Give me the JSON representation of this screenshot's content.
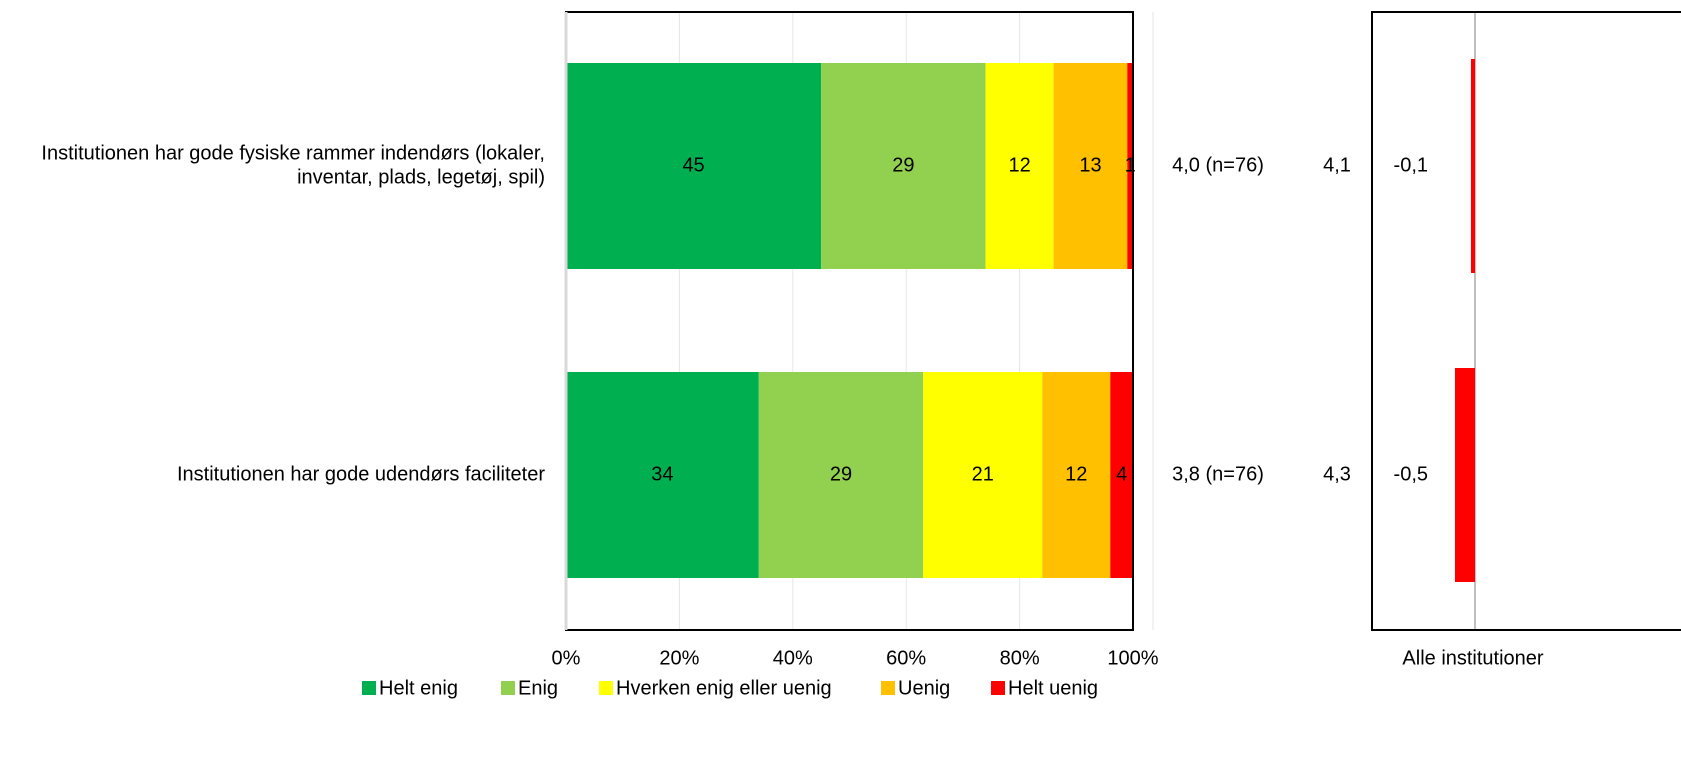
{
  "chart_data": [
    {
      "type": "bar",
      "orientation": "horizontal",
      "stacked": true,
      "categories": [
        [
          "Institutionen har gode fysiske rammer indendørs (lokaler,",
          "inventar, plads, legetøj, spil)"
        ],
        [
          "Institutionen har gode udendørs faciliteter"
        ]
      ],
      "series": [
        {
          "name": "Helt enig",
          "color": "#00B050",
          "values": [
            45,
            34
          ]
        },
        {
          "name": "Enig",
          "color": "#92D050",
          "values": [
            29,
            29
          ]
        },
        {
          "name": "Hverken enig eller uenig",
          "color": "#FFFF00",
          "values": [
            12,
            21
          ]
        },
        {
          "name": "Uenig",
          "color": "#FFC000",
          "values": [
            13,
            12
          ]
        },
        {
          "name": "Helt uenig",
          "color": "#FF0000",
          "values": [
            1,
            4
          ]
        }
      ],
      "data_labels": [
        [
          "45",
          "29",
          "12",
          "13",
          "1"
        ],
        [
          "34",
          "29",
          "21",
          "12",
          "4"
        ]
      ],
      "xlim": [
        0,
        100
      ],
      "x_ticks": [
        "0%",
        "20%",
        "40%",
        "60%",
        "80%",
        "100%"
      ],
      "grid": true,
      "legend_position": "bottom",
      "row_summary": [
        "4,0 (n=76)",
        "3,8 (n=76)"
      ],
      "all_institutions_mean": [
        "4,1",
        "4,3"
      ]
    },
    {
      "type": "bar",
      "orientation": "horizontal",
      "xlabel": "Alle institutioner",
      "values": [
        -0.1,
        -0.5
      ],
      "data_labels": [
        "-0,1",
        "-0,5"
      ],
      "color": "#FF0000"
    }
  ]
}
